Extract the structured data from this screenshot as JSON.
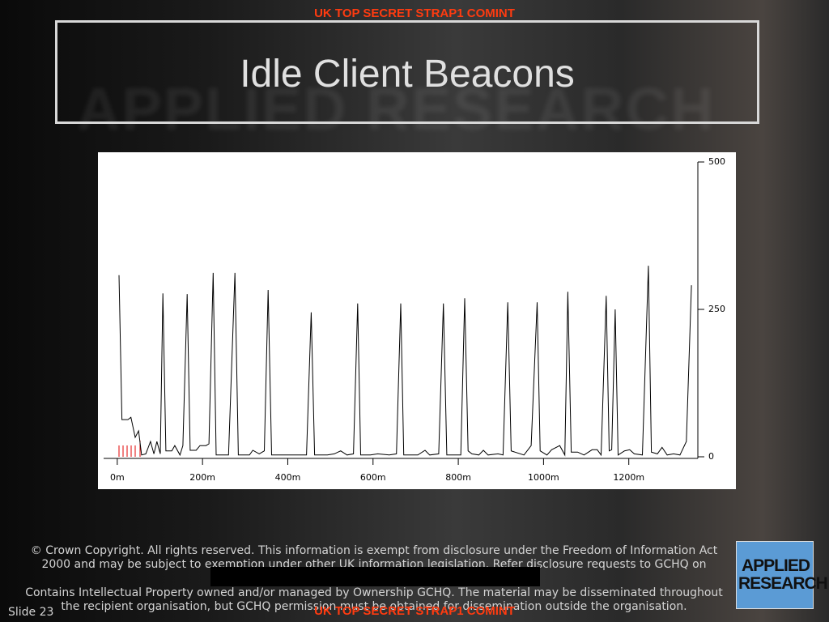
{
  "classification_top": "UK  TOP SECRET STRAP1 COMINT",
  "title": "Idle Client Beacons",
  "watermark": "APPLIED RESEARCH",
  "chart_data": {
    "type": "line",
    "x": [
      4,
      11,
      25,
      32,
      42,
      50,
      57,
      67,
      78,
      86,
      93,
      101,
      107,
      114,
      128,
      135,
      147,
      154,
      164,
      171,
      185,
      194,
      208,
      215,
      225,
      232,
      261,
      276,
      284,
      310,
      318,
      333,
      345,
      354,
      362,
      444,
      455,
      463,
      493,
      509,
      524,
      539,
      554,
      564,
      571,
      594,
      611,
      638,
      655,
      665,
      672,
      705,
      722,
      733,
      754,
      765,
      773,
      806,
      815,
      823,
      832,
      848,
      859,
      870,
      893,
      905,
      916,
      924,
      954,
      971,
      985,
      992,
      1008,
      1019,
      1038,
      1050,
      1057,
      1065,
      1080,
      1095,
      1114,
      1126,
      1135,
      1147,
      1154,
      1160,
      1168,
      1175,
      1190,
      1202,
      1213,
      1232,
      1246,
      1253,
      1267,
      1278,
      1290,
      1305,
      1320,
      1335,
      1347
    ],
    "values": [
      308,
      63,
      63,
      67,
      33,
      44,
      3,
      5,
      26,
      5,
      26,
      5,
      277,
      10,
      10,
      19,
      3,
      19,
      276,
      11,
      11,
      19,
      19,
      22,
      312,
      3,
      3,
      312,
      3,
      3,
      11,
      5,
      10,
      283,
      3,
      3,
      245,
      3,
      3,
      5,
      10,
      3,
      5,
      260,
      3,
      3,
      5,
      3,
      5,
      260,
      3,
      3,
      11,
      3,
      5,
      260,
      3,
      3,
      269,
      10,
      5,
      3,
      11,
      3,
      5,
      3,
      262,
      10,
      3,
      19,
      262,
      10,
      3,
      12,
      19,
      3,
      280,
      8,
      8,
      3,
      12,
      12,
      3,
      273,
      10,
      12,
      250,
      3,
      10,
      12,
      5,
      3,
      324,
      8,
      5,
      16,
      3,
      5,
      3,
      26,
      291
    ],
    "color": "#000000",
    "xlim": [
      -32,
      1362
    ],
    "ylim": [
      0,
      500
    ],
    "xticks": [
      {
        "value": 0,
        "label": "0m"
      },
      {
        "value": 200,
        "label": "200m"
      },
      {
        "value": 400,
        "label": "400m"
      },
      {
        "value": 600,
        "label": "600m"
      },
      {
        "value": 800,
        "label": "800m"
      },
      {
        "value": 1000,
        "label": "1000m"
      },
      {
        "value": 1200,
        "label": "1200m"
      }
    ],
    "yticks": [
      0,
      250,
      500
    ],
    "y_axis_side": "right",
    "grid": false
  },
  "footer": {
    "copyright": "© Crown Copyright. All rights reserved. This information is exempt from disclosure under the Freedom of Information Act 2000 and may be subject to exemption under other UK information legislation. Refer disclosure requests to GCHQ on",
    "ip_notice": "Contains Intellectual Property owned and/or managed by Ownership GCHQ. The material may be disseminated throughout the recipient organisation, but GCHQ permission must be obtained for dissemination outside the organisation."
  },
  "slide_number": "Slide 23",
  "logo": {
    "line1": "APPLIED",
    "line2": "RESEARCH"
  },
  "classification_bottom": "UK  TOP SECRET STRAP1 COMINT"
}
